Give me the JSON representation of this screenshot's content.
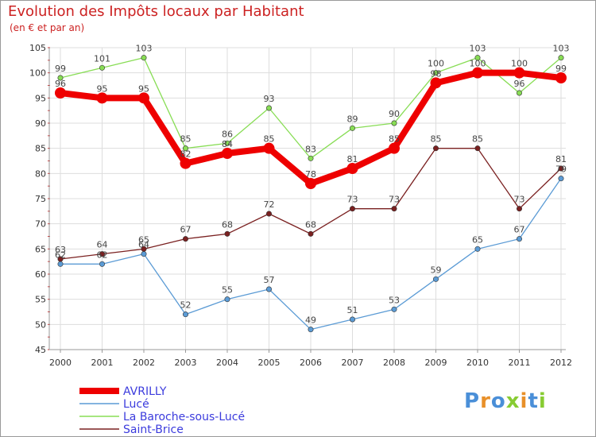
{
  "header": {
    "title": "Evolution des Impôts locaux par Habitant",
    "subtitle": "(en € et par an)"
  },
  "chart_data": {
    "type": "line",
    "title": "Evolution des Impôts locaux par Habitant",
    "subtitle": "(en € et par an)",
    "xlabel": "",
    "ylabel": "",
    "ylim": [
      45,
      105
    ],
    "yticks": [
      45,
      50,
      55,
      60,
      65,
      70,
      75,
      80,
      85,
      90,
      95,
      100,
      105
    ],
    "grid": true,
    "legend_position": "bottom-left",
    "x": [
      "2000",
      "2001",
      "2002",
      "2003",
      "2004",
      "2005",
      "2006",
      "2007",
      "2008",
      "2009",
      "2010",
      "2011",
      "2012"
    ],
    "series": [
      {
        "name": "AVRILLY",
        "color": "#ee0000",
        "values": [
          96,
          95,
          95,
          82,
          84,
          85,
          78,
          81,
          85,
          98,
          100,
          100,
          99
        ]
      },
      {
        "name": "Lucé",
        "color": "#5b9bd5",
        "values": [
          62,
          62,
          64,
          52,
          55,
          57,
          49,
          51,
          53,
          59,
          65,
          67,
          79
        ]
      },
      {
        "name": "La Baroche-sous-Lucé",
        "color": "#88dd55",
        "values": [
          99,
          101,
          103,
          85,
          86,
          93,
          83,
          89,
          90,
          100,
          103,
          96,
          103
        ]
      },
      {
        "name": "Saint-Brice",
        "color": "#7a2020",
        "values": [
          63,
          64,
          65,
          67,
          68,
          72,
          68,
          73,
          73,
          85,
          85,
          73,
          81
        ]
      }
    ]
  },
  "legend": {
    "items": [
      "AVRILLY",
      "Lucé",
      "La Baroche-sous-Lucé",
      "Saint-Brice"
    ]
  },
  "logo": {
    "letters": [
      "P",
      "r",
      "o",
      "x",
      "i",
      "t",
      "i"
    ],
    "colors": [
      "#4a8fd8",
      "#e8902a",
      "#4a8fd8",
      "#88cc33",
      "#e8902a",
      "#4a8fd8",
      "#88cc33"
    ]
  }
}
